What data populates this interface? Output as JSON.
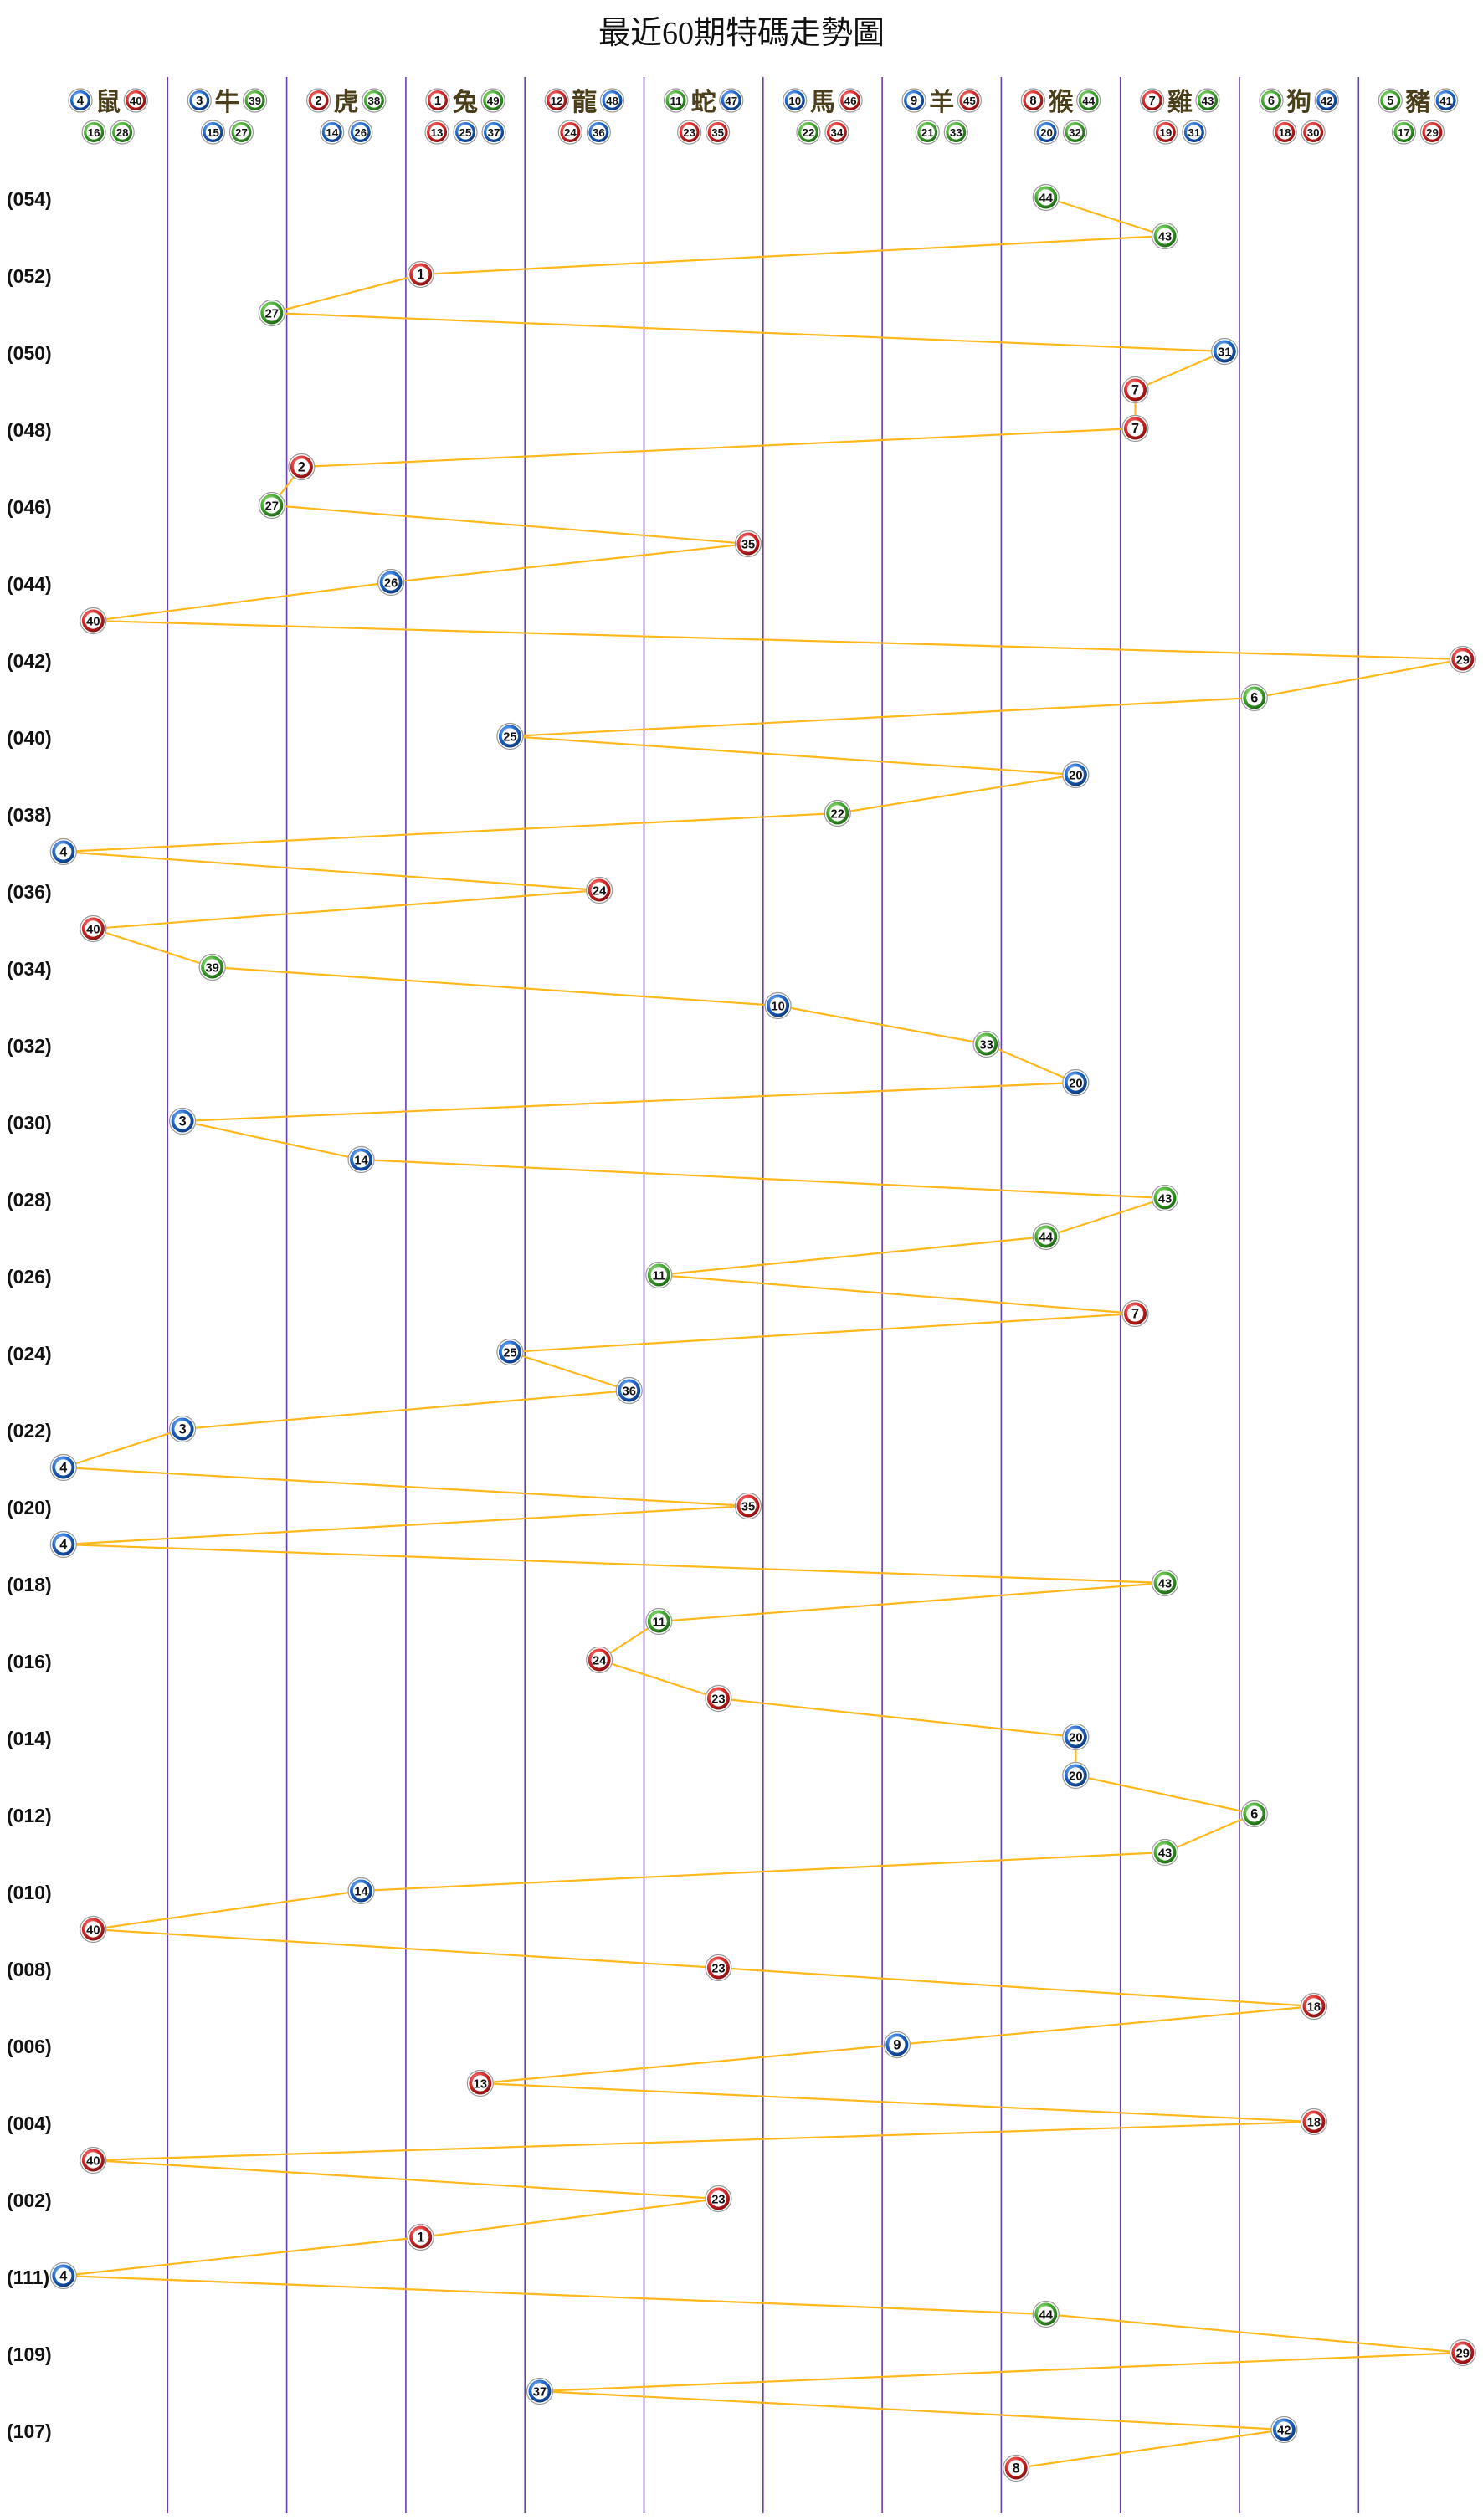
{
  "chart_data": {
    "type": "line",
    "title": "最近60期特碼走勢圖",
    "colors": {
      "red": "#d62a2a",
      "blue": "#1f67c9",
      "green": "#43a832",
      "line": "#ffb81c",
      "grid": "#6a3fb0",
      "zodiac_text": "#4a3f1a"
    },
    "columns": [
      {
        "zodiac": "鼠",
        "numbers": [
          4,
          40,
          16,
          28
        ]
      },
      {
        "zodiac": "牛",
        "numbers": [
          3,
          39,
          15,
          27
        ]
      },
      {
        "zodiac": "虎",
        "numbers": [
          2,
          38,
          14,
          26
        ]
      },
      {
        "zodiac": "兔",
        "numbers": [
          1,
          49,
          13,
          25,
          37
        ]
      },
      {
        "zodiac": "龍",
        "numbers": [
          12,
          48,
          24,
          36
        ]
      },
      {
        "zodiac": "蛇",
        "numbers": [
          11,
          47,
          23,
          35
        ]
      },
      {
        "zodiac": "馬",
        "numbers": [
          10,
          46,
          22,
          34
        ]
      },
      {
        "zodiac": "羊",
        "numbers": [
          9,
          45,
          21,
          33
        ]
      },
      {
        "zodiac": "猴",
        "numbers": [
          8,
          44,
          20,
          32
        ]
      },
      {
        "zodiac": "雞",
        "numbers": [
          7,
          43,
          19,
          31
        ]
      },
      {
        "zodiac": "狗",
        "numbers": [
          6,
          42,
          18,
          30
        ]
      },
      {
        "zodiac": "豬",
        "numbers": [
          5,
          41,
          17,
          29
        ]
      }
    ],
    "row_labels": [
      "(054)",
      "(052)",
      "(050)",
      "(048)",
      "(046)",
      "(044)",
      "(042)",
      "(040)",
      "(038)",
      "(036)",
      "(034)",
      "(032)",
      "(030)",
      "(028)",
      "(026)",
      "(024)",
      "(022)",
      "(020)",
      "(018)",
      "(016)",
      "(014)",
      "(012)",
      "(010)",
      "(008)",
      "(006)",
      "(004)",
      "(002)",
      "(111)",
      "(109)",
      "(107)"
    ],
    "series": [
      {
        "name": "特碼",
        "values": [
          44,
          43,
          1,
          27,
          31,
          7,
          7,
          2,
          27,
          35,
          26,
          40,
          29,
          6,
          25,
          20,
          22,
          4,
          24,
          40,
          39,
          10,
          33,
          20,
          3,
          14,
          43,
          44,
          11,
          7,
          25,
          36,
          3,
          4,
          35,
          4,
          43,
          11,
          24,
          23,
          20,
          20,
          6,
          43,
          14,
          40,
          23,
          18,
          9,
          13,
          18,
          40,
          23,
          1,
          4,
          44,
          29,
          37,
          42,
          8
        ]
      }
    ],
    "color_map": {
      "1": "red",
      "2": "red",
      "3": "blue",
      "4": "blue",
      "5": "green",
      "6": "green",
      "7": "red",
      "8": "red",
      "9": "blue",
      "10": "blue",
      "11": "green",
      "12": "red",
      "13": "red",
      "14": "blue",
      "15": "blue",
      "16": "green",
      "17": "green",
      "18": "red",
      "19": "red",
      "20": "blue",
      "21": "green",
      "22": "green",
      "23": "red",
      "24": "red",
      "25": "blue",
      "26": "blue",
      "27": "green",
      "28": "green",
      "29": "red",
      "30": "red",
      "31": "blue",
      "32": "green",
      "33": "green",
      "34": "red",
      "35": "red",
      "36": "blue",
      "37": "blue",
      "38": "green",
      "39": "green",
      "40": "red",
      "41": "blue",
      "42": "blue",
      "43": "green",
      "44": "green",
      "45": "red",
      "46": "red",
      "47": "blue",
      "48": "blue",
      "49": "green"
    }
  }
}
